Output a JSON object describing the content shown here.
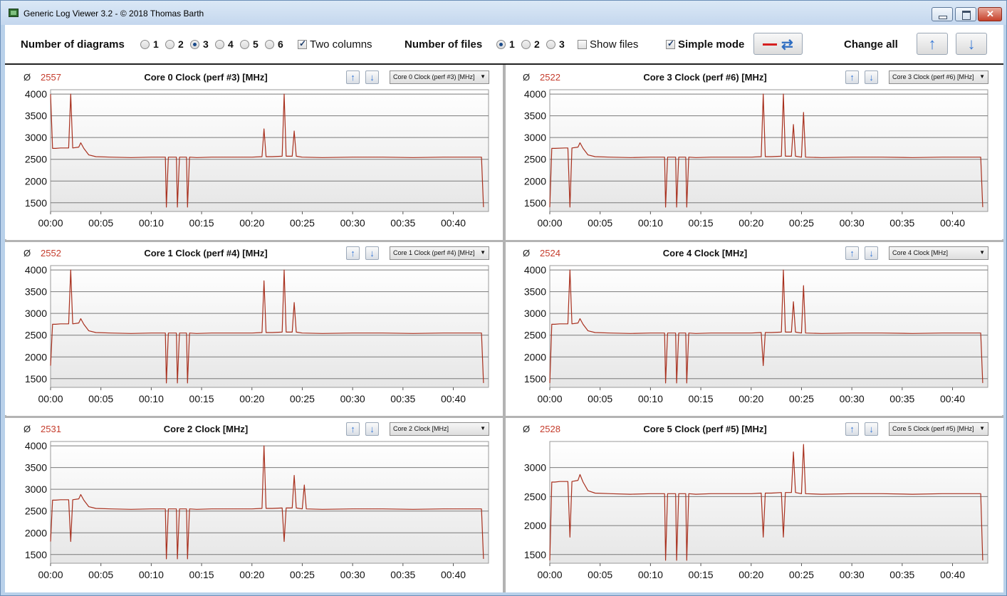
{
  "window": {
    "title": "Generic Log Viewer 3.2 - © 2018 Thomas Barth"
  },
  "toolbar": {
    "diagrams_label": "Number of diagrams",
    "diagram_options": [
      "1",
      "2",
      "3",
      "4",
      "5",
      "6"
    ],
    "diagrams_selected": "3",
    "two_columns_label": "Two columns",
    "two_columns_checked": true,
    "files_label": "Number of files",
    "file_options": [
      "1",
      "2",
      "3"
    ],
    "files_selected": "1",
    "show_files_label": "Show files",
    "show_files_checked": false,
    "simple_mode_label": "Simple mode",
    "simple_mode_checked": true,
    "change_all_label": "Change all"
  },
  "icons": {
    "swap": "swap-arrows-icon",
    "up": "arrow-up-icon",
    "down": "arrow-down-icon",
    "line": "red-line-icon"
  },
  "colors": {
    "series": "#a8301e",
    "average": "#c53c2c",
    "plot_band": "#e6e6e6"
  },
  "panels": [
    {
      "avg_symbol": "Ø",
      "avg": "2557",
      "title": "Core 0 Clock (perf #3) [MHz]",
      "select_value": "Core 0 Clock (perf #3) [MHz]"
    },
    {
      "avg_symbol": "Ø",
      "avg": "2522",
      "title": "Core 3 Clock (perf #6) [MHz]",
      "select_value": "Core 3 Clock (perf #6) [MHz]"
    },
    {
      "avg_symbol": "Ø",
      "avg": "2552",
      "title": "Core 1 Clock (perf #4) [MHz]",
      "select_value": "Core 1 Clock (perf #4) [MHz]"
    },
    {
      "avg_symbol": "Ø",
      "avg": "2524",
      "title": "Core 4 Clock [MHz]",
      "select_value": "Core 4 Clock [MHz]"
    },
    {
      "avg_symbol": "Ø",
      "avg": "2531",
      "title": "Core 2 Clock [MHz]",
      "select_value": "Core 2 Clock [MHz]"
    },
    {
      "avg_symbol": "Ø",
      "avg": "2528",
      "title": "Core 5 Clock (perf #5) [MHz]",
      "select_value": "Core 5 Clock (perf #5) [MHz]"
    }
  ],
  "chart_data": [
    {
      "type": "line",
      "title": "Core 0 Clock (perf #3) [MHz]",
      "x_unit": "minutes",
      "x_ticks": [
        "00:00",
        "00:05",
        "00:10",
        "00:15",
        "00:20",
        "00:25",
        "00:30",
        "00:35",
        "00:40"
      ],
      "yticks": [
        1500,
        2000,
        2500,
        3000,
        3500,
        4000
      ],
      "ylim": [
        1300,
        4100
      ],
      "xlim": [
        0,
        43.5
      ],
      "series": [
        {
          "x": [
            0,
            0.2,
            0.5,
            1,
            1.8,
            2,
            2.2,
            2.8,
            3,
            3.3,
            3.8,
            4.5,
            6,
            8,
            10,
            11.4,
            11.5,
            11.7,
            12,
            12.5,
            12.6,
            12.8,
            13.5,
            13.6,
            13.8,
            14.5,
            16,
            18,
            20,
            21,
            21.2,
            21.4,
            22,
            23,
            23.2,
            23.4,
            24,
            24.2,
            24.4,
            25,
            27,
            30,
            33,
            36,
            39,
            42,
            42.8,
            43
          ],
          "y": [
            4000,
            2750,
            2750,
            2760,
            2760,
            4000,
            2760,
            2780,
            2880,
            2750,
            2600,
            2560,
            2550,
            2540,
            2550,
            2550,
            1400,
            2550,
            2550,
            2550,
            1400,
            2550,
            2550,
            1400,
            2550,
            2540,
            2550,
            2550,
            2550,
            2560,
            3200,
            2560,
            2560,
            2570,
            4000,
            2570,
            2570,
            3150,
            2570,
            2550,
            2540,
            2550,
            2550,
            2540,
            2550,
            2550,
            2550,
            1400
          ]
        }
      ]
    },
    {
      "type": "line",
      "title": "Core 3 Clock (perf #6) [MHz]",
      "x_unit": "minutes",
      "x_ticks": [
        "00:00",
        "00:05",
        "00:10",
        "00:15",
        "00:20",
        "00:25",
        "00:30",
        "00:35",
        "00:40"
      ],
      "yticks": [
        1500,
        2000,
        2500,
        3000,
        3500,
        4000
      ],
      "ylim": [
        1300,
        4100
      ],
      "xlim": [
        0,
        43.5
      ],
      "series": [
        {
          "x": [
            0,
            0.2,
            0.5,
            1.5,
            1.8,
            2,
            2.2,
            2.8,
            3,
            3.3,
            3.8,
            4.5,
            6,
            8,
            10,
            11.4,
            11.5,
            11.7,
            12,
            12.5,
            12.6,
            12.8,
            13.5,
            13.6,
            13.8,
            14.5,
            16,
            18,
            20,
            21,
            21.2,
            21.4,
            22,
            23,
            23.2,
            23.4,
            24,
            24.2,
            24.4,
            25,
            25.2,
            25.4,
            27,
            30,
            33,
            36,
            39,
            42,
            42.8,
            43
          ],
          "y": [
            1400,
            2750,
            2750,
            2760,
            2760,
            1400,
            2760,
            2780,
            2880,
            2750,
            2600,
            2560,
            2550,
            2540,
            2550,
            2550,
            1400,
            2550,
            2550,
            2550,
            1400,
            2550,
            2550,
            1400,
            2550,
            2540,
            2550,
            2550,
            2550,
            2560,
            4000,
            2560,
            2560,
            2570,
            4000,
            2570,
            2570,
            3300,
            2570,
            2550,
            3580,
            2550,
            2540,
            2550,
            2550,
            2540,
            2550,
            2550,
            2550,
            1400
          ]
        }
      ]
    },
    {
      "type": "line",
      "title": "Core 1 Clock (perf #4) [MHz]",
      "x_unit": "minutes",
      "x_ticks": [
        "00:00",
        "00:05",
        "00:10",
        "00:15",
        "00:20",
        "00:25",
        "00:30",
        "00:35",
        "00:40"
      ],
      "yticks": [
        1500,
        2000,
        2500,
        3000,
        3500,
        4000
      ],
      "ylim": [
        1300,
        4100
      ],
      "xlim": [
        0,
        43.5
      ],
      "series": [
        {
          "x": [
            0,
            0.2,
            0.5,
            1,
            1.8,
            2,
            2.2,
            2.8,
            3,
            3.3,
            3.8,
            4.5,
            6,
            8,
            10,
            11.4,
            11.5,
            11.7,
            12,
            12.5,
            12.6,
            12.8,
            13.5,
            13.6,
            13.8,
            14.5,
            16,
            18,
            20,
            21,
            21.2,
            21.4,
            22,
            23,
            23.2,
            23.4,
            24,
            24.2,
            24.4,
            25,
            27,
            30,
            33,
            36,
            39,
            42,
            42.8,
            43
          ],
          "y": [
            1800,
            2750,
            2750,
            2760,
            2760,
            4000,
            2760,
            2780,
            2880,
            2750,
            2600,
            2560,
            2550,
            2540,
            2550,
            2550,
            1400,
            2550,
            2550,
            2550,
            1400,
            2550,
            2550,
            1400,
            2550,
            2540,
            2550,
            2550,
            2550,
            2560,
            3750,
            2560,
            2560,
            2570,
            4000,
            2570,
            2570,
            3250,
            2570,
            2550,
            2540,
            2550,
            2550,
            2540,
            2550,
            2550,
            2550,
            1400
          ]
        }
      ]
    },
    {
      "type": "line",
      "title": "Core 4 Clock [MHz]",
      "x_unit": "minutes",
      "x_ticks": [
        "00:00",
        "00:05",
        "00:10",
        "00:15",
        "00:20",
        "00:25",
        "00:30",
        "00:35",
        "00:40"
      ],
      "yticks": [
        1500,
        2000,
        2500,
        3000,
        3500,
        4000
      ],
      "ylim": [
        1300,
        4100
      ],
      "xlim": [
        0,
        43.5
      ],
      "series": [
        {
          "x": [
            0,
            0.2,
            0.5,
            1,
            1.8,
            2,
            2.2,
            2.8,
            3,
            3.3,
            3.8,
            4.5,
            6,
            8,
            10,
            11.4,
            11.5,
            11.7,
            12,
            12.5,
            12.6,
            12.8,
            13.5,
            13.6,
            13.8,
            14.5,
            16,
            18,
            20,
            21,
            21.2,
            21.4,
            22,
            23,
            23.2,
            23.4,
            24,
            24.2,
            24.4,
            25,
            25.2,
            25.4,
            27,
            30,
            33,
            36,
            39,
            42,
            42.8,
            43
          ],
          "y": [
            1400,
            2750,
            2750,
            2760,
            2760,
            4000,
            2760,
            2780,
            2880,
            2750,
            2600,
            2560,
            2550,
            2540,
            2550,
            2550,
            1400,
            2550,
            2550,
            2550,
            1400,
            2550,
            2550,
            1400,
            2550,
            2540,
            2550,
            2550,
            2550,
            2560,
            1800,
            2560,
            2560,
            2570,
            4000,
            2570,
            2570,
            3270,
            2570,
            2550,
            3640,
            2550,
            2540,
            2550,
            2550,
            2540,
            2550,
            2550,
            2550,
            1400
          ]
        }
      ]
    },
    {
      "type": "line",
      "title": "Core 2 Clock [MHz]",
      "x_unit": "minutes",
      "x_ticks": [
        "00:00",
        "00:05",
        "00:10",
        "00:15",
        "00:20",
        "00:25",
        "00:30",
        "00:35",
        "00:40"
      ],
      "yticks": [
        1500,
        2000,
        2500,
        3000,
        3500,
        4000
      ],
      "ylim": [
        1300,
        4100
      ],
      "xlim": [
        0,
        43.5
      ],
      "series": [
        {
          "x": [
            0,
            0.2,
            0.5,
            1,
            1.8,
            2,
            2.2,
            2.8,
            3,
            3.3,
            3.8,
            4.5,
            6,
            8,
            10,
            11.4,
            11.5,
            11.7,
            12,
            12.5,
            12.6,
            12.8,
            13.5,
            13.6,
            13.8,
            14.5,
            16,
            18,
            20,
            21,
            21.2,
            21.4,
            22,
            23,
            23.2,
            23.4,
            24,
            24.2,
            24.4,
            25,
            25.2,
            25.4,
            27,
            30,
            33,
            36,
            39,
            42,
            42.8,
            43
          ],
          "y": [
            1800,
            2750,
            2750,
            2760,
            2760,
            1800,
            2760,
            2780,
            2880,
            2750,
            2600,
            2560,
            2550,
            2540,
            2550,
            2550,
            1400,
            2550,
            2550,
            2550,
            1400,
            2550,
            2550,
            1400,
            2550,
            2540,
            2550,
            2550,
            2550,
            2560,
            4000,
            2560,
            2560,
            2570,
            1800,
            2570,
            2570,
            3320,
            2570,
            2550,
            3100,
            2550,
            2540,
            2550,
            2550,
            2540,
            2550,
            2550,
            2550,
            1400
          ]
        }
      ]
    },
    {
      "type": "line",
      "title": "Core 5 Clock (perf #5) [MHz]",
      "x_unit": "minutes",
      "x_ticks": [
        "00:00",
        "00:05",
        "00:10",
        "00:15",
        "00:20",
        "00:25",
        "00:30",
        "00:35",
        "00:40"
      ],
      "yticks": [
        1500,
        2000,
        2500,
        3000
      ],
      "ylim": [
        1350,
        3450
      ],
      "xlim": [
        0,
        43.5
      ],
      "series": [
        {
          "x": [
            0,
            0.2,
            0.5,
            1,
            1.8,
            2,
            2.2,
            2.8,
            3,
            3.3,
            3.8,
            4.5,
            6,
            8,
            10,
            11.4,
            11.5,
            11.7,
            12,
            12.5,
            12.6,
            12.8,
            13.5,
            13.6,
            13.8,
            14.5,
            16,
            18,
            20,
            21,
            21.2,
            21.4,
            22,
            23,
            23.2,
            23.4,
            24,
            24.2,
            24.4,
            25,
            25.2,
            25.4,
            27,
            30,
            33,
            36,
            39,
            42,
            42.8,
            43
          ],
          "y": [
            1400,
            2750,
            2750,
            2760,
            2760,
            1800,
            2760,
            2780,
            2880,
            2750,
            2600,
            2560,
            2550,
            2540,
            2550,
            2550,
            1400,
            2550,
            2550,
            2550,
            1400,
            2550,
            2550,
            1400,
            2550,
            2540,
            2550,
            2550,
            2550,
            2560,
            1800,
            2560,
            2560,
            2570,
            1800,
            2570,
            2570,
            3270,
            2570,
            2550,
            3400,
            2550,
            2540,
            2550,
            2550,
            2540,
            2550,
            2550,
            2550,
            1400
          ]
        }
      ]
    }
  ]
}
